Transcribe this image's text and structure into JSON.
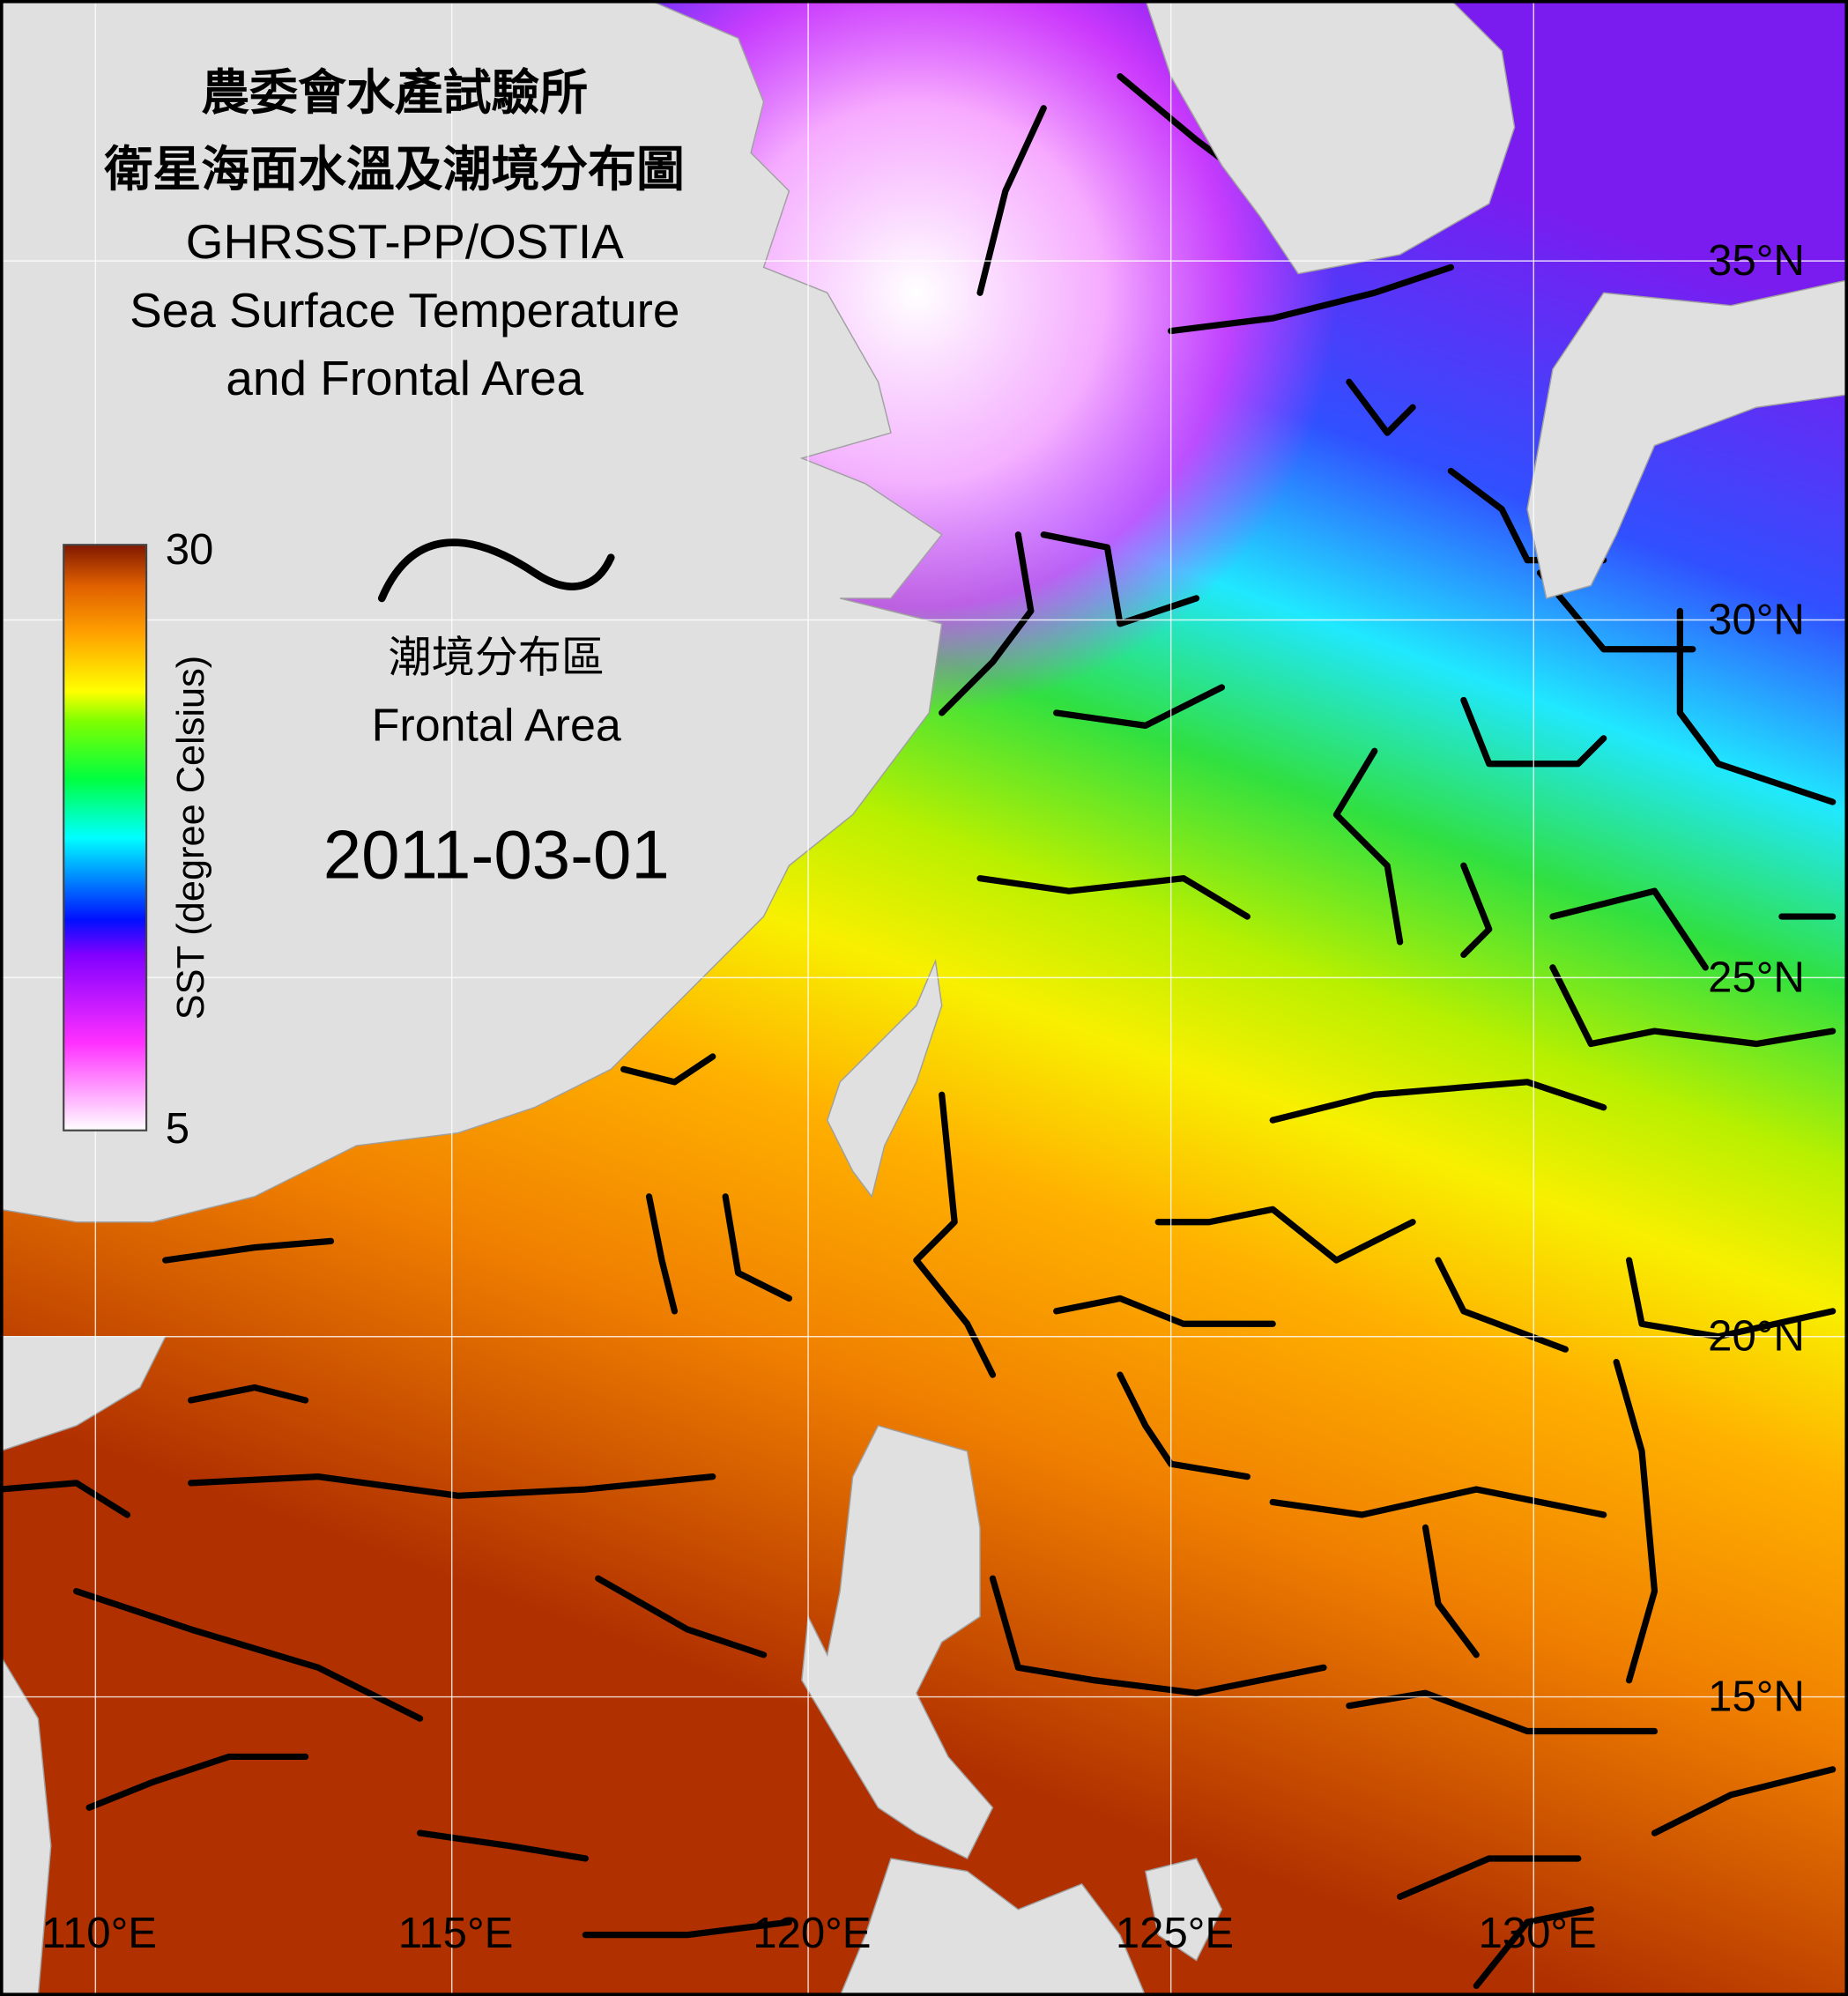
{
  "title": {
    "zh_line1": "農委會水產試驗所",
    "zh_line2": "衛星海面水溫及潮境分布圖",
    "en_line1": "GHRSST-PP/OSTIA",
    "en_line2": "Sea Surface Temperature",
    "en_line3": "and Frontal Area"
  },
  "colorbar": {
    "label": "SST (degree Celsius)",
    "max": 30,
    "min": 5
  },
  "legend": {
    "zh": "潮境分布區",
    "en": "Frontal Area"
  },
  "date": "2011-03-01",
  "grid": {
    "lon_labels": [
      "110°E",
      "115°E",
      "120°E",
      "125°E",
      "130°E"
    ],
    "lat_labels": [
      "35°N",
      "30°N",
      "25°N",
      "20°N",
      "15°N"
    ]
  }
}
